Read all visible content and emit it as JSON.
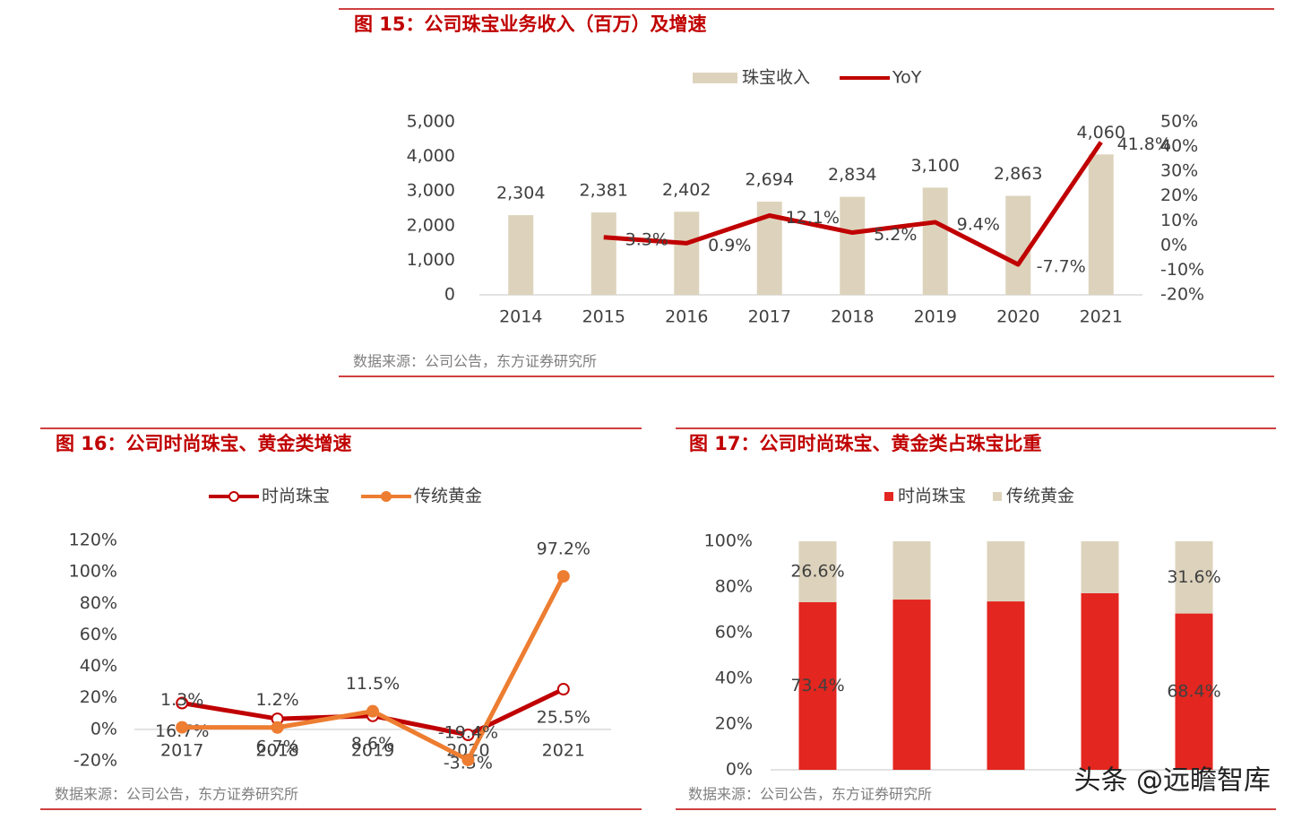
{
  "chart_data": [
    {
      "type": "bar",
      "title": "图 15：公司珠宝业务收入（百万）及增速",
      "source": "数据来源：公司公告，东方证券研究所",
      "categories": [
        "2014",
        "2015",
        "2016",
        "2017",
        "2018",
        "2019",
        "2020",
        "2021"
      ],
      "series": [
        {
          "name": "珠宝收入",
          "type": "bar",
          "color": "#ddd3bc",
          "values": [
            2304,
            2381,
            2402,
            2694,
            2834,
            3100,
            2863,
            4060
          ],
          "value_labels": [
            "2,304",
            "2,381",
            "2,402",
            "2,694",
            "2,834",
            "3,100",
            "2,863",
            "4,060"
          ]
        },
        {
          "name": "YoY",
          "type": "line",
          "axis": "y2",
          "color": "#c00000",
          "values": [
            null,
            3.3,
            0.9,
            12.1,
            5.2,
            9.4,
            -7.7,
            41.8
          ],
          "value_labels": [
            null,
            "3.3%",
            "0.9%",
            "12.1%",
            "5.2%",
            "9.4%",
            "-7.7%",
            "41.8%"
          ]
        }
      ],
      "ylim": [
        0,
        5000
      ],
      "yticks": [
        0,
        {
          "value": 1000,
          "label": "1,000"
        },
        {
          "value": 2000,
          "label": "2,000"
        },
        {
          "value": 3000,
          "label": "3,000"
        },
        {
          "value": 4000,
          "label": "4,000"
        },
        {
          "value": 5000,
          "label": "5,000"
        }
      ],
      "y2lim": [
        -20,
        50
      ],
      "y2ticks": [
        {
          "value": -20,
          "label": "-20%"
        },
        {
          "value": -10,
          "label": "-10%"
        },
        {
          "value": 0,
          "label": "0%"
        },
        {
          "value": 10,
          "label": "10%"
        },
        {
          "value": 20,
          "label": "20%"
        },
        {
          "value": 30,
          "label": "30%"
        },
        {
          "value": 40,
          "label": "40%"
        },
        {
          "value": 50,
          "label": "50%"
        }
      ],
      "grid": false,
      "legend": "top"
    },
    {
      "type": "line",
      "title": "图 16：公司时尚珠宝、黄金类增速",
      "source": "数据来源：公司公告，东方证券研究所",
      "categories": [
        "2017",
        "2018",
        "2019",
        "2020",
        "2021"
      ],
      "series": [
        {
          "name": "时尚珠宝",
          "type": "line",
          "color": "#c00000",
          "marker": "hollow",
          "values": [
            16.7,
            6.7,
            8.6,
            -3.5,
            25.5
          ],
          "value_labels": [
            "16.7%",
            "6.7%",
            "8.6%",
            "-3.5%",
            "25.5%"
          ]
        },
        {
          "name": "传统黄金",
          "type": "line",
          "color": "#ed7d31",
          "marker": "filled",
          "values": [
            1.3,
            1.2,
            11.5,
            -19.4,
            97.2
          ],
          "value_labels": [
            "1.3%",
            "1.2%",
            "11.5%",
            "-19.4%",
            "97.2%"
          ]
        }
      ],
      "ylim": [
        -20,
        120
      ],
      "yticks": [
        {
          "value": -20,
          "label": "-20%"
        },
        {
          "value": 0,
          "label": "0%"
        },
        {
          "value": 20,
          "label": "20%"
        },
        {
          "value": 40,
          "label": "40%"
        },
        {
          "value": 60,
          "label": "60%"
        },
        {
          "value": 80,
          "label": "80%"
        },
        {
          "value": 100,
          "label": "100%"
        },
        {
          "value": 120,
          "label": "120%"
        }
      ],
      "grid": false,
      "legend": "top"
    },
    {
      "type": "stacked_bar",
      "title": "图 17：公司时尚珠宝、黄金类占珠宝比重",
      "source": "数据来源：公司公告，东方证券研究所",
      "categories": [
        null,
        null,
        null,
        null,
        null
      ],
      "series": [
        {
          "name": "时尚珠宝",
          "type": "bar",
          "color": "#e3261f",
          "values": [
            73.4,
            74.5,
            73.7,
            77.3,
            68.4
          ],
          "value_labels": [
            "73.4%",
            null,
            null,
            null,
            "68.4%"
          ]
        },
        {
          "name": "传统黄金",
          "type": "bar",
          "color": "#ddd3bc",
          "values": [
            26.6,
            25.5,
            26.3,
            22.7,
            31.6
          ],
          "value_labels": [
            "26.6%",
            null,
            null,
            null,
            "31.6%"
          ]
        }
      ],
      "ylim": [
        0,
        100
      ],
      "yticks": [
        {
          "value": 0,
          "label": "0%"
        },
        {
          "value": 20,
          "label": "20%"
        },
        {
          "value": 40,
          "label": "40%"
        },
        {
          "value": 60,
          "label": "60%"
        },
        {
          "value": 80,
          "label": "80%"
        },
        {
          "value": 100,
          "label": "100%"
        }
      ],
      "grid": false,
      "legend": "top"
    }
  ],
  "watermark": "头条 @远瞻智库"
}
